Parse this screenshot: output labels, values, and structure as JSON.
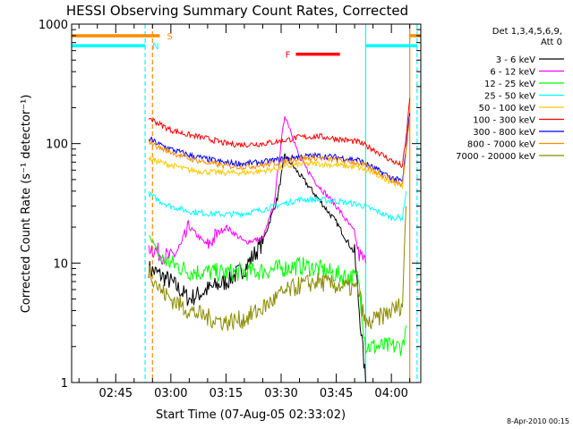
{
  "chart_data": {
    "type": "line",
    "title": "HESSI Observing Summary Count Rates, Corrected",
    "xlabel": "Start Time (07-Aug-05 02:33:02)",
    "ylabel": "Corrected Count Rate (s⁻¹ detector⁻¹)",
    "footer": "8-Apr-2010 00:15",
    "y_scale": "log",
    "ylim": [
      1,
      1000
    ],
    "xlim_minutes_utc": [
      "02:33",
      "04:08"
    ],
    "x_tick_labels": [
      "02:45",
      "03:00",
      "03:15",
      "03:30",
      "03:45",
      "04:00"
    ],
    "y_tick_labels": [
      "1",
      "10",
      "100",
      "1000"
    ],
    "legend": {
      "header": [
        "Det 1,3,4,5,6,9,",
        "Att 0"
      ],
      "placement": "right"
    },
    "markers": {
      "S": "S",
      "N": "N",
      "F": "F"
    },
    "series": [
      {
        "name": "3 - 6 keV",
        "color": "#000000",
        "points": [
          [
            "02:54",
            9
          ],
          [
            "02:57",
            8
          ],
          [
            "03:00",
            7
          ],
          [
            "03:05",
            5
          ],
          [
            "03:10",
            6
          ],
          [
            "03:15",
            7
          ],
          [
            "03:20",
            9
          ],
          [
            "03:25",
            15
          ],
          [
            "03:29",
            35
          ],
          [
            "03:31",
            80
          ],
          [
            "03:35",
            55
          ],
          [
            "03:40",
            35
          ],
          [
            "03:45",
            22
          ],
          [
            "03:50",
            12
          ],
          [
            "03:51",
            5
          ],
          [
            "03:53",
            1
          ]
        ]
      },
      {
        "name": "6 - 12 keV",
        "color": "#ff00ff",
        "points": [
          [
            "02:54",
            14
          ],
          [
            "02:57",
            12
          ],
          [
            "03:00",
            11
          ],
          [
            "03:03",
            14
          ],
          [
            "03:05",
            20
          ],
          [
            "03:08",
            16
          ],
          [
            "03:10",
            14
          ],
          [
            "03:13",
            18
          ],
          [
            "03:15",
            20
          ],
          [
            "03:18",
            17
          ],
          [
            "03:20",
            15
          ],
          [
            "03:25",
            16
          ],
          [
            "03:28",
            30
          ],
          [
            "03:30",
            100
          ],
          [
            "03:31",
            175
          ],
          [
            "03:33",
            120
          ],
          [
            "03:35",
            75
          ],
          [
            "03:40",
            45
          ],
          [
            "03:45",
            30
          ],
          [
            "03:50",
            18
          ],
          [
            "03:51",
            12
          ],
          [
            "03:53",
            10
          ]
        ]
      },
      {
        "name": "12 - 25 keV",
        "color": "#00ff00",
        "points": [
          [
            "02:54",
            18
          ],
          [
            "02:57",
            11
          ],
          [
            "03:00",
            10
          ],
          [
            "03:05",
            8.5
          ],
          [
            "03:15",
            8.3
          ],
          [
            "03:25",
            8.6
          ],
          [
            "03:30",
            9
          ],
          [
            "03:35",
            9.5
          ],
          [
            "03:40",
            9
          ],
          [
            "03:45",
            8
          ],
          [
            "03:51",
            7.5
          ],
          [
            "03:53",
            2
          ],
          [
            "04:03",
            2
          ],
          [
            "04:04",
            3
          ]
        ]
      },
      {
        "name": "25 - 50 keV",
        "color": "#00ffff",
        "points": [
          [
            "02:54",
            38
          ],
          [
            "02:57",
            33
          ],
          [
            "03:00",
            30
          ],
          [
            "03:05",
            27
          ],
          [
            "03:10",
            26
          ],
          [
            "03:15",
            25.5
          ],
          [
            "03:20",
            26
          ],
          [
            "03:25",
            28
          ],
          [
            "03:30",
            31
          ],
          [
            "03:35",
            34
          ],
          [
            "03:40",
            34
          ],
          [
            "03:45",
            33
          ],
          [
            "03:51",
            31
          ],
          [
            "03:55",
            28
          ],
          [
            "04:00",
            24
          ],
          [
            "04:03",
            24
          ],
          [
            "04:04",
            40
          ]
        ]
      },
      {
        "name": "50 - 100 keV",
        "color": "#ffc800",
        "points": [
          [
            "02:54",
            75
          ],
          [
            "02:57",
            70
          ],
          [
            "03:00",
            66
          ],
          [
            "03:05",
            60
          ],
          [
            "03:10",
            58
          ],
          [
            "03:15",
            57
          ],
          [
            "03:20",
            57
          ],
          [
            "03:25",
            59
          ],
          [
            "03:30",
            63
          ],
          [
            "03:35",
            67
          ],
          [
            "03:40",
            68
          ],
          [
            "03:45",
            66
          ],
          [
            "03:51",
            63
          ],
          [
            "03:55",
            57
          ],
          [
            "04:00",
            48
          ],
          [
            "04:03",
            45
          ],
          [
            "04:04",
            80
          ]
        ]
      },
      {
        "name": "100 - 300 keV",
        "color": "#ff0000",
        "points": [
          [
            "02:54",
            165
          ],
          [
            "02:57",
            145
          ],
          [
            "03:00",
            130
          ],
          [
            "03:05",
            118
          ],
          [
            "03:10",
            110
          ],
          [
            "03:15",
            100
          ],
          [
            "03:20",
            98
          ],
          [
            "03:25",
            100
          ],
          [
            "03:30",
            105
          ],
          [
            "03:35",
            113
          ],
          [
            "03:40",
            115
          ],
          [
            "03:45",
            110
          ],
          [
            "03:51",
            103
          ],
          [
            "03:55",
            90
          ],
          [
            "04:00",
            72
          ],
          [
            "04:03",
            65
          ],
          [
            "04:04",
            110
          ],
          [
            "04:05",
            240
          ]
        ]
      },
      {
        "name": "300 - 800 keV",
        "color": "#0000ff",
        "points": [
          [
            "02:54",
            110
          ],
          [
            "02:57",
            98
          ],
          [
            "03:00",
            90
          ],
          [
            "03:05",
            80
          ],
          [
            "03:10",
            74
          ],
          [
            "03:15",
            69
          ],
          [
            "03:20",
            68
          ],
          [
            "03:25",
            70
          ],
          [
            "03:30",
            74
          ],
          [
            "03:35",
            78
          ],
          [
            "03:40",
            79
          ],
          [
            "03:45",
            77
          ],
          [
            "03:51",
            73
          ],
          [
            "03:55",
            63
          ],
          [
            "04:00",
            52
          ],
          [
            "04:03",
            48
          ],
          [
            "04:04",
            90
          ],
          [
            "04:05",
            180
          ]
        ]
      },
      {
        "name": "800 - 7000 keV",
        "color": "#ff8c00",
        "points": [
          [
            "02:54",
            105
          ],
          [
            "02:57",
            92
          ],
          [
            "03:00",
            85
          ],
          [
            "03:05",
            75
          ],
          [
            "03:10",
            69
          ],
          [
            "03:15",
            65
          ],
          [
            "03:20",
            64
          ],
          [
            "03:25",
            66
          ],
          [
            "03:30",
            70
          ],
          [
            "03:35",
            75
          ],
          [
            "03:40",
            76
          ],
          [
            "03:45",
            73
          ],
          [
            "03:51",
            69
          ],
          [
            "03:55",
            60
          ],
          [
            "04:00",
            50
          ],
          [
            "04:03",
            45
          ],
          [
            "04:04",
            85
          ],
          [
            "04:05",
            170
          ]
        ]
      },
      {
        "name": "7000 - 20000 keV",
        "color": "#8b8b00",
        "points": [
          [
            "02:54",
            9
          ],
          [
            "02:57",
            6
          ],
          [
            "03:00",
            5
          ],
          [
            "03:05",
            4
          ],
          [
            "03:10",
            3.5
          ],
          [
            "03:15",
            3.2
          ],
          [
            "03:20",
            3.4
          ],
          [
            "03:25",
            4.2
          ],
          [
            "03:30",
            5.5
          ],
          [
            "03:35",
            6.5
          ],
          [
            "03:40",
            7
          ],
          [
            "03:45",
            6.5
          ],
          [
            "03:51",
            6
          ],
          [
            "03:53",
            3
          ],
          [
            "04:03",
            4.5
          ],
          [
            "04:04",
            30
          ]
        ]
      }
    ],
    "bars": [
      {
        "label": "S",
        "color": "#ff8c00",
        "level": 800,
        "segments": [
          [
            "02:33",
            "02:57"
          ],
          [
            "04:05",
            "04:08"
          ]
        ]
      },
      {
        "label": "N",
        "color": "#00ffff",
        "level": 660,
        "segments": [
          [
            "02:33",
            "02:53"
          ],
          [
            "03:53",
            "04:07"
          ]
        ]
      },
      {
        "label": "F",
        "color": "#ff0000",
        "level": 560,
        "segments": [
          [
            "03:34",
            "03:46"
          ]
        ]
      }
    ],
    "vlines": [
      {
        "time": "02:53",
        "color": "#00ffff",
        "style": "dashed"
      },
      {
        "time": "02:55",
        "color": "#ff8c00",
        "style": "dashed"
      },
      {
        "time": "03:53",
        "color": "#00ffff",
        "style": "solid"
      },
      {
        "time": "04:05",
        "color": "#ff8c00",
        "style": "solid"
      },
      {
        "time": "04:07",
        "color": "#00ffff",
        "style": "dashed"
      }
    ]
  }
}
